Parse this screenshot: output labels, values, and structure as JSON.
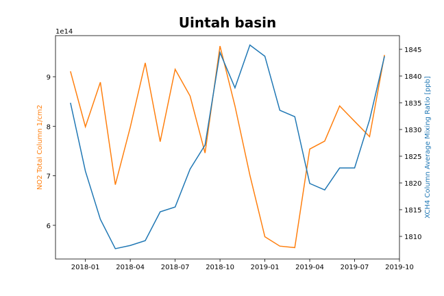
{
  "chart_data": {
    "type": "line",
    "title": "Uintah basin",
    "x": [
      "2017-12",
      "2018-01",
      "2018-02",
      "2018-03",
      "2018-04",
      "2018-05",
      "2018-06",
      "2018-07",
      "2018-08",
      "2018-09",
      "2018-10",
      "2018-11",
      "2018-12",
      "2019-01",
      "2019-02",
      "2019-03",
      "2019-04",
      "2019-05",
      "2019-06",
      "2019-07",
      "2019-08",
      "2019-09"
    ],
    "xlim": [
      "2017-11",
      "2019-10"
    ],
    "xticks": [
      "2018-01",
      "2018-04",
      "2018-07",
      "2018-10",
      "2019-01",
      "2019-04",
      "2019-07",
      "2019-10"
    ],
    "ylabel": "NO2 Total Column 1/cm2",
    "y_offset_label": "1e14",
    "ylim": [
      5.32,
      9.83
    ],
    "yticks": [
      6,
      7,
      8,
      9
    ],
    "y2label": "XCH4 Column Average Mixing Ratio [ppb]",
    "y2lim": [
      1805.77,
      1847.56
    ],
    "y2ticks": [
      1810,
      1815,
      1820,
      1825,
      1830,
      1835,
      1840,
      1845
    ],
    "grid": false,
    "series": [
      {
        "name": "NO2",
        "color": "#ff7f0e",
        "axis": "y",
        "values": [
          9.11,
          7.99,
          8.89,
          6.82,
          7.98,
          9.28,
          7.69,
          9.15,
          8.61,
          7.46,
          9.62,
          8.41,
          7.01,
          5.77,
          5.58,
          5.55,
          7.54,
          7.7,
          8.41,
          8.1,
          7.79,
          9.44
        ]
      },
      {
        "name": "XCH4",
        "color": "#1f77b4",
        "axis": "y2",
        "values": [
          1835.0,
          1822.2,
          1813.2,
          1807.7,
          1808.3,
          1809.2,
          1814.6,
          1815.5,
          1822.6,
          1827.1,
          1844.4,
          1837.8,
          1845.8,
          1843.7,
          1833.6,
          1832.4,
          1819.9,
          1818.7,
          1822.8,
          1822.8,
          1831.8,
          1843.7
        ]
      }
    ]
  }
}
